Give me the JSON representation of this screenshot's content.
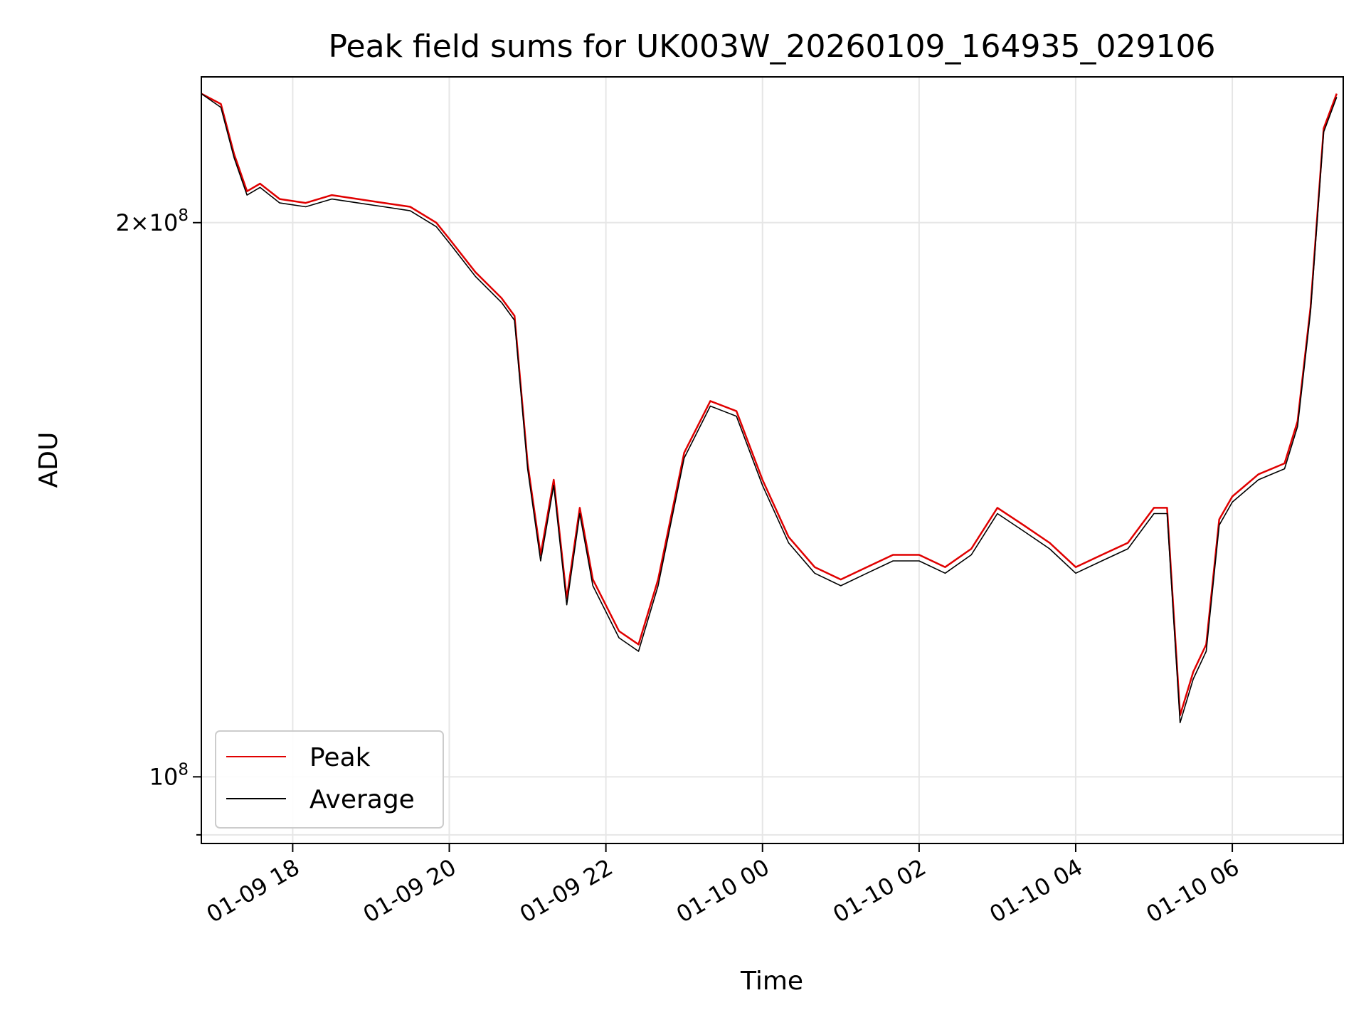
{
  "chart_data": {
    "type": "line",
    "title": "Peak field sums for UK003W_20260109_164935_029106",
    "xlabel": "Time",
    "ylabel": "ADU",
    "y_scale": "log",
    "xlim": [
      "2026-01-09 16:50",
      "2026-01-10 07:25"
    ],
    "ylim": [
      92000000,
      240000000
    ],
    "grid": true,
    "legend_position": "lower-left",
    "x_ticks": [
      "01-09 18",
      "01-09 20",
      "01-09 22",
      "01-10 00",
      "01-10 02",
      "01-10 04",
      "01-10 06"
    ],
    "y_tick_labels": [
      {
        "value": 200000000,
        "base": "2×10",
        "exp": "8"
      },
      {
        "value": 100000000,
        "base": "10",
        "exp": "8"
      }
    ],
    "x": [
      "2026-01-09 16:50",
      "2026-01-09 17:05",
      "2026-01-09 17:15",
      "2026-01-09 17:25",
      "2026-01-09 17:35",
      "2026-01-09 17:50",
      "2026-01-09 18:10",
      "2026-01-09 18:30",
      "2026-01-09 18:50",
      "2026-01-09 19:10",
      "2026-01-09 19:30",
      "2026-01-09 19:50",
      "2026-01-09 20:00",
      "2026-01-09 20:20",
      "2026-01-09 20:40",
      "2026-01-09 20:50",
      "2026-01-09 21:00",
      "2026-01-09 21:10",
      "2026-01-09 21:20",
      "2026-01-09 21:30",
      "2026-01-09 21:40",
      "2026-01-09 21:50",
      "2026-01-09 22:10",
      "2026-01-09 22:25",
      "2026-01-09 22:40",
      "2026-01-09 23:00",
      "2026-01-09 23:20",
      "2026-01-09 23:40",
      "2026-01-10 00:00",
      "2026-01-10 00:20",
      "2026-01-10 00:40",
      "2026-01-10 01:00",
      "2026-01-10 01:20",
      "2026-01-10 01:40",
      "2026-01-10 02:00",
      "2026-01-10 02:20",
      "2026-01-10 02:40",
      "2026-01-10 03:00",
      "2026-01-10 03:20",
      "2026-01-10 03:40",
      "2026-01-10 04:00",
      "2026-01-10 04:20",
      "2026-01-10 04:40",
      "2026-01-10 05:00",
      "2026-01-10 05:10",
      "2026-01-10 05:20",
      "2026-01-10 05:30",
      "2026-01-10 05:40",
      "2026-01-10 05:50",
      "2026-01-10 06:00",
      "2026-01-10 06:20",
      "2026-01-10 06:40",
      "2026-01-10 06:50",
      "2026-01-10 07:00",
      "2026-01-10 07:10",
      "2026-01-10 07:20"
    ],
    "series": [
      {
        "name": "Peak",
        "color": "#e00000",
        "values": [
          235000000,
          232000000,
          218000000,
          208000000,
          210000000,
          206000000,
          205000000,
          207000000,
          206000000,
          205000000,
          204000000,
          200000000,
          196000000,
          188000000,
          182000000,
          178000000,
          148000000,
          132000000,
          145000000,
          125000000,
          140000000,
          128000000,
          120000000,
          118000000,
          128000000,
          150000000,
          160000000,
          158000000,
          145000000,
          135000000,
          130000000,
          128000000,
          130000000,
          132000000,
          132000000,
          130000000,
          133000000,
          140000000,
          137000000,
          134000000,
          130000000,
          132000000,
          134000000,
          140000000,
          140000000,
          108000000,
          114000000,
          118000000,
          138000000,
          142000000,
          146000000,
          148000000,
          156000000,
          180000000,
          225000000,
          235000000
        ]
      },
      {
        "name": "Average",
        "color": "#000000",
        "values": [
          235000000,
          231000000,
          217000000,
          207000000,
          209000000,
          205000000,
          204000000,
          206000000,
          205000000,
          204000000,
          203000000,
          199000000,
          195000000,
          187000000,
          181000000,
          177000000,
          147000000,
          131000000,
          144000000,
          124000000,
          139000000,
          127000000,
          119000000,
          117000000,
          127000000,
          149000000,
          159000000,
          157000000,
          144000000,
          134000000,
          129000000,
          127000000,
          129000000,
          131000000,
          131000000,
          129000000,
          132000000,
          139000000,
          136000000,
          133000000,
          129000000,
          131000000,
          133000000,
          139000000,
          139000000,
          107000000,
          113000000,
          117000000,
          137000000,
          141000000,
          145000000,
          147000000,
          155000000,
          179000000,
          224000000,
          234000000
        ]
      }
    ]
  }
}
